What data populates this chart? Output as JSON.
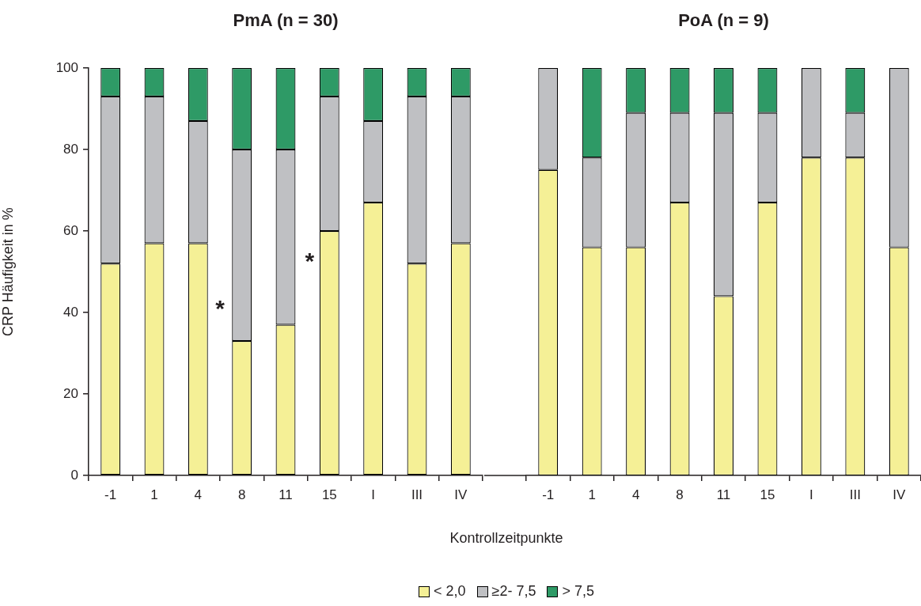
{
  "chart_data": [
    {
      "type": "bar",
      "title": "PmA (n = 30)",
      "xlabel": "Kontrollzeitpunkte",
      "ylabel": "CRP Häufigkeit in %",
      "categories": [
        "-1",
        "1",
        "4",
        "8",
        "11",
        "15",
        "I",
        "III",
        "IV"
      ],
      "stacked": true,
      "ylim": [
        0,
        100
      ],
      "yticks": [
        0,
        20,
        40,
        60,
        80,
        100
      ],
      "grid": false,
      "legend": "bottom",
      "annotations": [
        "*",
        "*"
      ],
      "series": [
        {
          "name": "< 2,0",
          "color": "#f5f096",
          "values": [
            52,
            57,
            57,
            33,
            37,
            60,
            67,
            52,
            57
          ]
        },
        {
          "name": "≥2- 7,5",
          "color": "#bfc0c3",
          "values": [
            41,
            36,
            30,
            47,
            43,
            33,
            20,
            41,
            36
          ]
        },
        {
          "name": "> 7,5",
          "color": "#2e9a66",
          "values": [
            7,
            7,
            13,
            20,
            20,
            7,
            13,
            7,
            7
          ]
        }
      ]
    },
    {
      "type": "bar",
      "title": "PoA (n = 9)",
      "categories": [
        "-1",
        "1",
        "4",
        "8",
        "11",
        "15",
        "I",
        "III",
        "IV"
      ],
      "stacked": true,
      "ylim": [
        0,
        100
      ],
      "tick_labels": "x",
      "grid": false,
      "series": [
        {
          "color": "#f5f096",
          "values": [
            75,
            56,
            56,
            67,
            44,
            67,
            78,
            78,
            56
          ]
        },
        {
          "color": "#bfc0c3",
          "values": [
            25,
            22,
            33,
            22,
            45,
            22,
            22,
            11,
            44
          ]
        },
        {
          "color": "#2e9a66",
          "values": [
            0,
            22,
            11,
            11,
            11,
            11,
            0,
            11,
            0
          ]
        }
      ]
    }
  ]
}
